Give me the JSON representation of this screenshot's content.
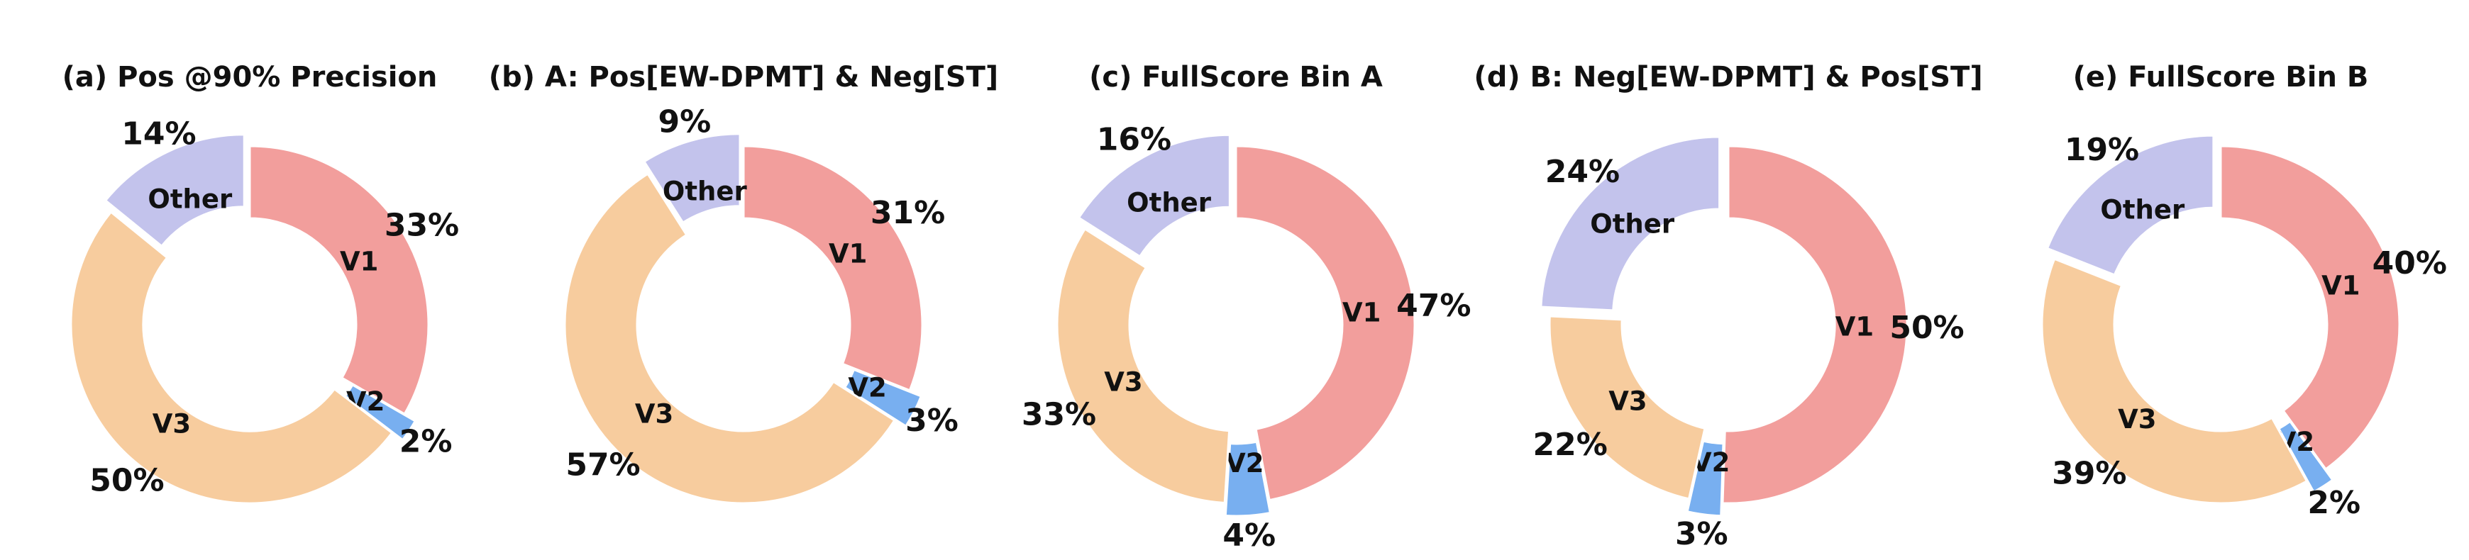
{
  "chart_data": [
    {
      "type": "pie",
      "title": "(a) Pos @90% Precision",
      "categories": [
        "V1",
        "V2",
        "V3",
        "Other"
      ],
      "values": [
        33,
        2,
        50,
        14
      ],
      "value_labels": [
        "33%",
        "2%",
        "50%",
        "14%"
      ],
      "exploded": [
        "V2",
        "Other"
      ]
    },
    {
      "type": "pie",
      "title": "(b) A: Pos[EW-DPMT] & Neg[ST]",
      "categories": [
        "V1",
        "V2",
        "V3",
        "Other"
      ],
      "values": [
        31,
        3,
        57,
        9
      ],
      "value_labels": [
        "31%",
        "3%",
        "57%",
        "9%"
      ],
      "exploded": [
        "V2",
        "Other"
      ]
    },
    {
      "type": "pie",
      "title": "(c) FullScore Bin A",
      "categories": [
        "V1",
        "V2",
        "V3",
        "Other"
      ],
      "values": [
        47,
        4,
        33,
        16
      ],
      "value_labels": [
        "47%",
        "4%",
        "33%",
        "16%"
      ],
      "exploded": [
        "V2",
        "Other"
      ]
    },
    {
      "type": "pie",
      "title": "(d) B: Neg[EW-DPMT] & Pos[ST]",
      "categories": [
        "V1",
        "V2",
        "V3",
        "Other"
      ],
      "values": [
        50,
        3,
        22,
        24
      ],
      "value_labels": [
        "50%",
        "3%",
        "22%",
        "24%"
      ],
      "exploded": [
        "V2",
        "Other"
      ]
    },
    {
      "type": "pie",
      "title": "(e) FullScore Bin B",
      "categories": [
        "V1",
        "V2",
        "V3",
        "Other"
      ],
      "values": [
        40,
        2,
        39,
        19
      ],
      "value_labels": [
        "40%",
        "2%",
        "39%",
        "19%"
      ],
      "exploded": [
        "V2",
        "Other"
      ]
    }
  ],
  "colors": {
    "V1": "#f29e9c",
    "V2": "#78aff0",
    "V3": "#f7cc9e",
    "Other": "#c3c3ec",
    "text": "#111111",
    "background": "#ffffff"
  }
}
